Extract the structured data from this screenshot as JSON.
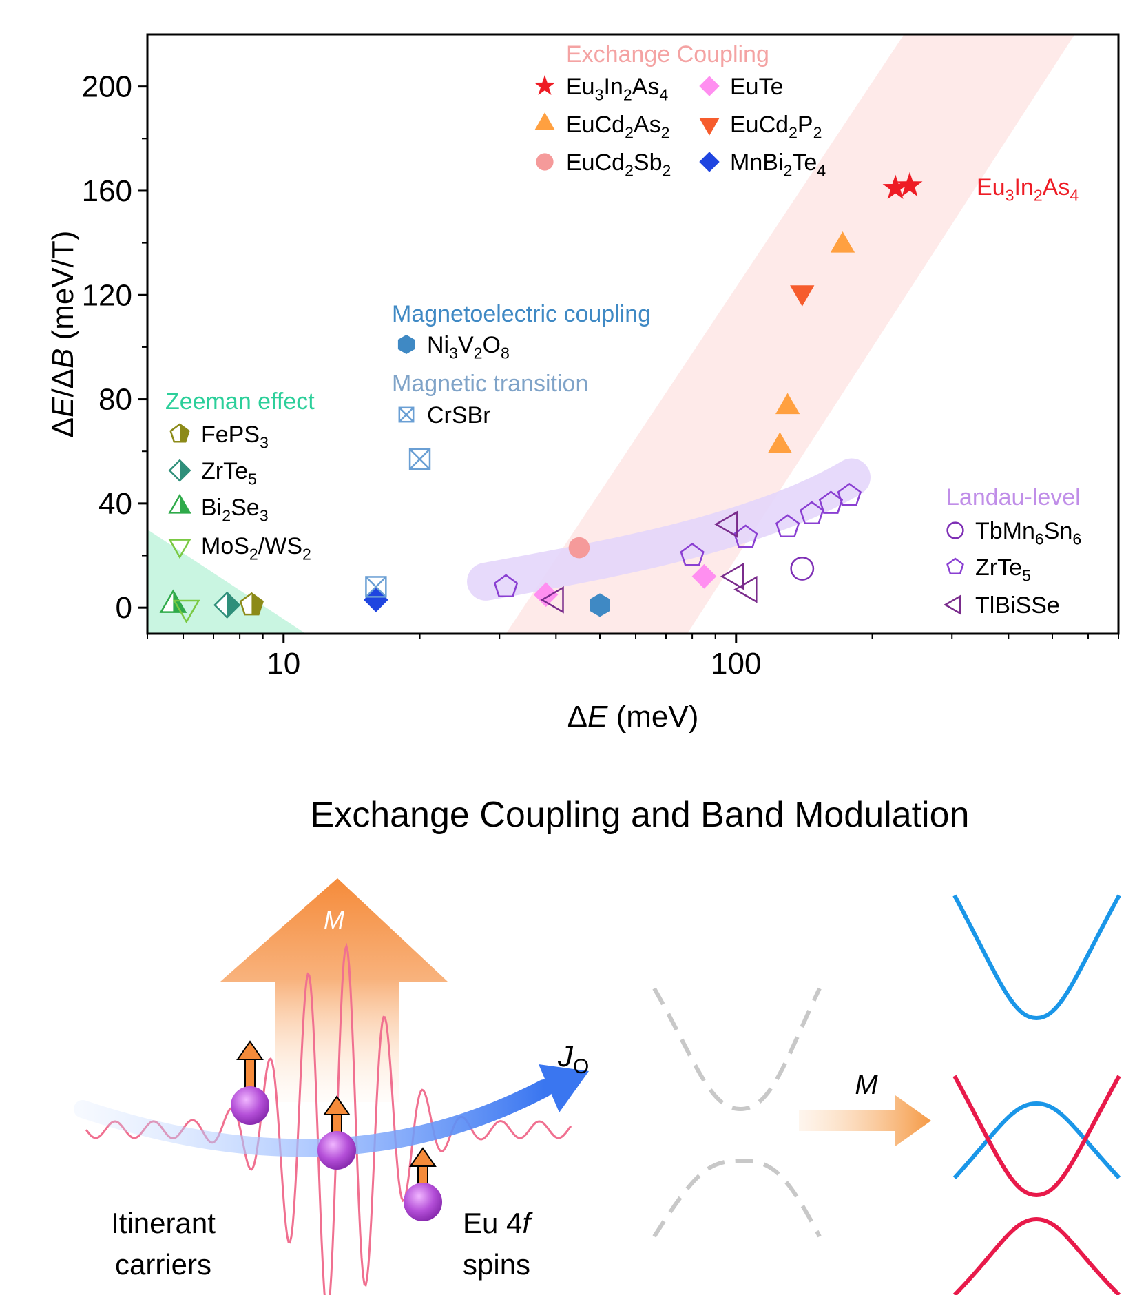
{
  "chart_data": {
    "type": "scatter",
    "xlabel": "ΔE (meV)",
    "ylabel": "ΔE/ΔB (meV/T)",
    "xscale": "log",
    "xlim": [
      5,
      700
    ],
    "ylim": [
      -10,
      220
    ],
    "x_ticks": [
      10,
      100
    ],
    "y_ticks": [
      0,
      40,
      80,
      120,
      160,
      200
    ],
    "grid": false,
    "groups": [
      {
        "title": "Exchange Coupling",
        "color": "#f4a3a3"
      },
      {
        "title": "Magnetoelectric coupling",
        "color": "#3f89c4"
      },
      {
        "title": "Magnetic transition",
        "color": "#7fa3c8"
      },
      {
        "title": "Zeeman effect",
        "color": "#2ccf9a"
      },
      {
        "title": "Landau-level",
        "color": "#c08ee8"
      }
    ],
    "series": [
      {
        "label": [
          "Eu",
          "3",
          "In",
          "2",
          "As",
          "4"
        ],
        "marker": "star",
        "color": "#ee1c25",
        "points": [
          [
            225,
            161
          ],
          [
            242,
            162
          ]
        ]
      },
      {
        "label": [
          "EuTe"
        ],
        "marker": "diamond",
        "color": "#ff8ff0",
        "points": [
          [
            38,
            5
          ],
          [
            85,
            12
          ]
        ]
      },
      {
        "label": [
          "EuCd",
          "2",
          "As",
          "2"
        ],
        "marker": "triangle-up",
        "color": "#ffa040",
        "points": [
          [
            125,
            62
          ],
          [
            130,
            77
          ],
          [
            172,
            139
          ]
        ]
      },
      {
        "label": [
          "EuCd",
          "2",
          "P",
          "2"
        ],
        "marker": "triangle-down",
        "color": "#f65c2d",
        "points": [
          [
            140,
            121
          ]
        ]
      },
      {
        "label": [
          "EuCd",
          "2",
          "Sb",
          "2"
        ],
        "marker": "circle",
        "color": "#f59a9a",
        "points": [
          [
            45,
            23
          ]
        ]
      },
      {
        "label": [
          "MnBi",
          "2",
          "Te",
          "4"
        ],
        "marker": "diamond",
        "color": "#1f45e0",
        "points": [
          [
            16,
            3
          ]
        ]
      },
      {
        "label": [
          "Ni",
          "3",
          "V",
          "2",
          "O",
          "8"
        ],
        "marker": "hexagon",
        "color": "#3f89c4",
        "points": [
          [
            50,
            1
          ]
        ]
      },
      {
        "label": [
          "CrSBr"
        ],
        "marker": "boxed-x",
        "color": "#6a9fd4",
        "points": [
          [
            20,
            57
          ],
          [
            16,
            8
          ]
        ]
      },
      {
        "label": [
          "FePS",
          "3"
        ],
        "marker": "pentagon-half",
        "color": "#8c8a18",
        "points": [
          [
            8.5,
            1
          ]
        ]
      },
      {
        "label": [
          "ZrTe",
          "5"
        ],
        "marker": "diamond-half",
        "color": "#2f8f7a",
        "points": [
          [
            7.5,
            1
          ]
        ]
      },
      {
        "label": [
          "Bi",
          "2",
          "Se",
          "3"
        ],
        "marker": "triangle-half",
        "color": "#2faa4a",
        "points": [
          [
            5.7,
            1
          ]
        ]
      },
      {
        "label": [
          "MoS",
          "2",
          "/WS",
          "2"
        ],
        "marker": "triangle-down-open",
        "color": "#7ac943",
        "points": [
          [
            6.1,
            0
          ]
        ]
      },
      {
        "label": [
          "TbMn",
          "6",
          "Sn",
          "6"
        ],
        "marker": "circle-open",
        "color": "#7e2fb5",
        "points": [
          [
            140,
            15
          ]
        ]
      },
      {
        "label": [
          "ZrTe",
          "5"
        ],
        "marker": "pentagon-open",
        "color": "#8a3fd2",
        "points": [
          [
            31,
            8
          ],
          [
            80,
            20
          ],
          [
            105,
            27
          ],
          [
            130,
            31
          ],
          [
            147,
            36
          ],
          [
            162,
            40
          ],
          [
            178,
            43
          ]
        ]
      },
      {
        "label": [
          "TlBiSSe"
        ],
        "marker": "triangle-left-open",
        "color": "#7a2c8c",
        "points": [
          [
            40,
            3
          ],
          [
            97,
            32
          ],
          [
            100,
            12
          ],
          [
            107,
            7
          ]
        ]
      }
    ],
    "annotations": [
      {
        "text": [
          "Eu",
          "3",
          "In",
          "2",
          "As",
          "4"
        ],
        "color": "#ee1c25"
      }
    ]
  },
  "diagram": {
    "title": "Exchange Coupling and Band Modulation",
    "magnetization_label": "M",
    "current_label": [
      "J",
      "O"
    ],
    "carriers_label": [
      "Itinerant",
      "carriers"
    ],
    "spins_label": [
      "Eu 4",
      "f",
      "spins"
    ],
    "arrow_label": "M"
  }
}
